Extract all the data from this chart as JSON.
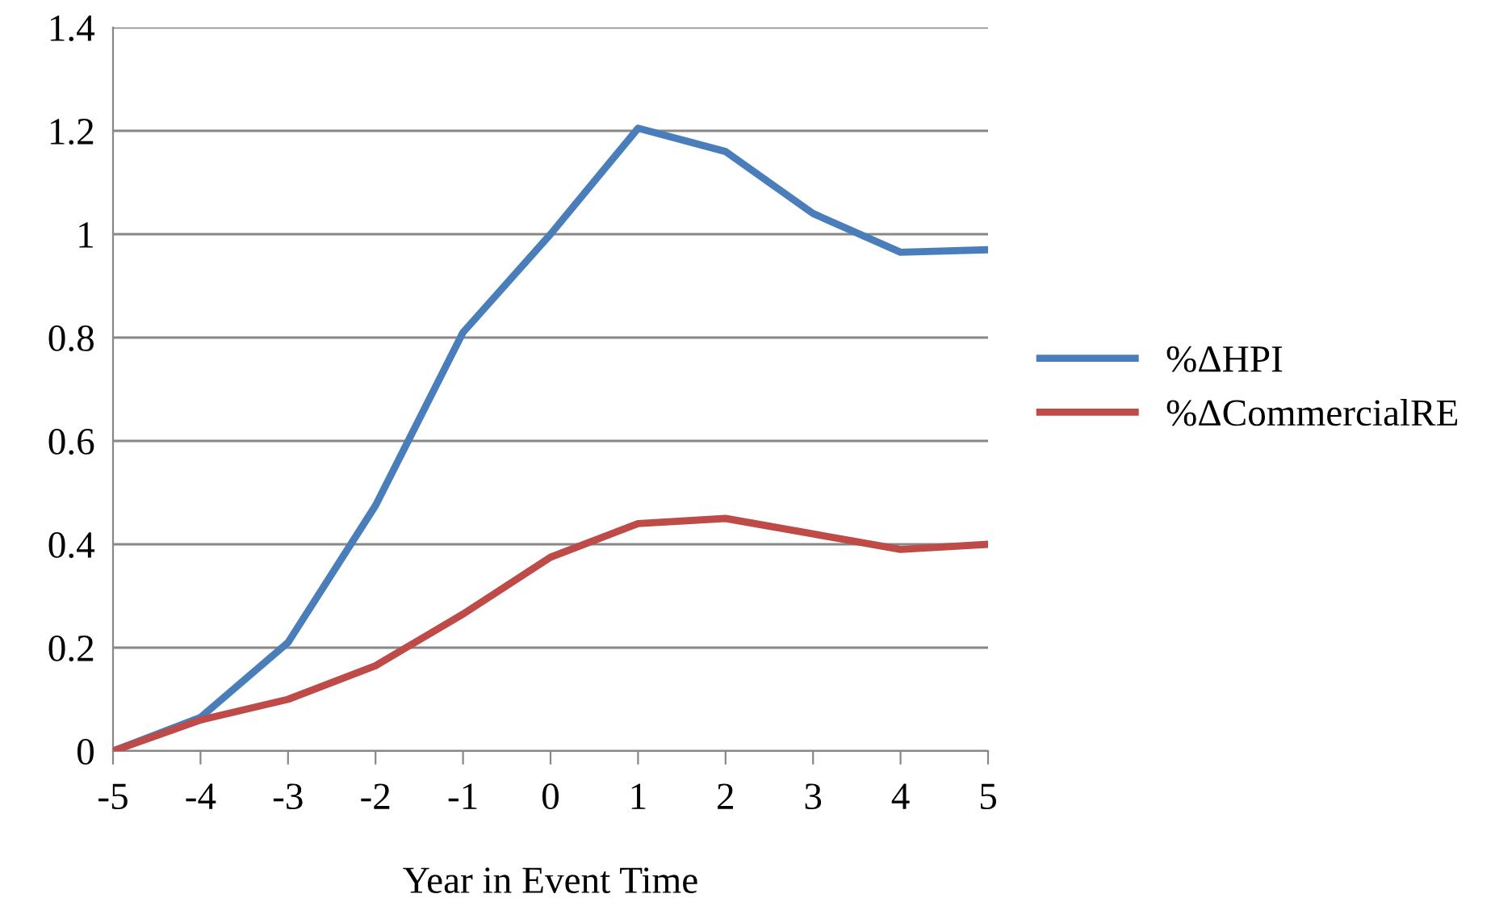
{
  "chart_data": {
    "type": "line",
    "xlabel": "Year in Event Time",
    "x": [
      -5,
      -4,
      -3,
      -2,
      -1,
      0,
      1,
      2,
      3,
      4,
      5
    ],
    "series": [
      {
        "name": "%ΔHPI",
        "color": "#4a7ebb",
        "values": [
          0,
          0.065,
          0.21,
          0.475,
          0.81,
          1.0,
          1.205,
          1.16,
          1.04,
          0.965,
          0.97
        ]
      },
      {
        "name": "%ΔCommercialRE",
        "color": "#be4b48",
        "values": [
          0,
          0.06,
          0.1,
          0.165,
          0.265,
          0.375,
          0.44,
          0.45,
          0.42,
          0.39,
          0.4
        ]
      }
    ],
    "xlim": [
      -5,
      5
    ],
    "xticks": [
      -5,
      -4,
      -3,
      -2,
      -1,
      0,
      1,
      2,
      3,
      4,
      5
    ],
    "ylim": [
      0,
      1.4
    ],
    "yticks": [
      0,
      0.2,
      0.4,
      0.6,
      0.8,
      1,
      1.2,
      1.4
    ],
    "grid": "y",
    "legend": "right",
    "marker": "none",
    "line_style": "solid"
  }
}
